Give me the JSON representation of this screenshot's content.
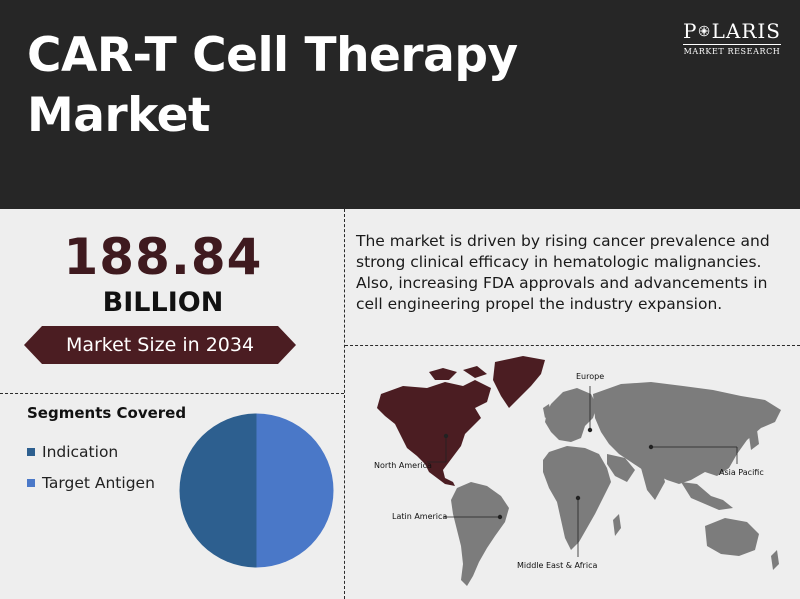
{
  "header": {
    "title_line1": "CAR-T Cell Therapy",
    "title_line2": "Market"
  },
  "logo": {
    "name_left": "P",
    "name_right": "LARIS",
    "subtitle": "MARKET RESEARCH",
    "icon": "compass-star-icon"
  },
  "highlight": {
    "value": "188.84",
    "unit": "BILLION",
    "caption": "Market Size in 2034"
  },
  "segments": {
    "title": "Segments Covered",
    "items": [
      {
        "label": "Indication",
        "color": "#2d5f8f",
        "share": 0.5
      },
      {
        "label": "Target Antigen",
        "color": "#4a78c8",
        "share": 0.5
      }
    ]
  },
  "description": "The market is driven by rising cancer prevalence and strong clinical efficacy in hematologic malignancies. Also, increasing FDA approvals and advancements in cell engineering propel the industry expansion.",
  "map": {
    "highlight_color": "#4b1d22",
    "land_color": "#7c7c7c",
    "regions": [
      {
        "name": "North America",
        "highlighted": true
      },
      {
        "name": "Europe",
        "highlighted": false
      },
      {
        "name": "Asia Pacific",
        "highlighted": false
      },
      {
        "name": "Latin America",
        "highlighted": false
      },
      {
        "name": "Middle East & Africa",
        "highlighted": false
      }
    ]
  },
  "colors": {
    "header_bg": "#262626",
    "accent": "#4b1d22",
    "value_color": "#3f1a1f",
    "page_bg": "#eeeeee"
  }
}
